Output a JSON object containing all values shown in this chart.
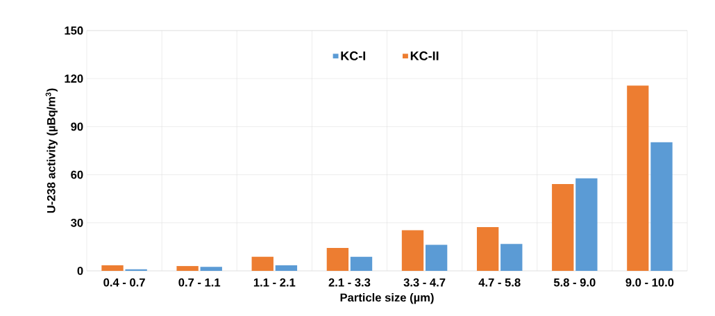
{
  "chart_data": {
    "type": "bar",
    "xlabel": "Particle size (µm)",
    "ylabel": "U-238 activity (µBq/m$^{3}$)",
    "categories": [
      "0.4 - 0.7",
      "0.7 - 1.1",
      "1.1 - 2.1",
      "2.1 - 3.3",
      "3.3 - 4.7",
      "4.7 - 5.8",
      "5.8 - 9.0",
      "9.0 - 10.0"
    ],
    "series": [
      {
        "name": "KC-II",
        "color": "#ed7d31",
        "values": [
          3.5,
          3.0,
          8.8,
          14.3,
          25.4,
          27.3,
          54.2,
          115.6
        ]
      },
      {
        "name": "KC-I",
        "color": "#5b9bd5",
        "values": [
          1.0,
          2.5,
          3.5,
          8.8,
          16.3,
          16.8,
          57.8,
          80.3
        ]
      }
    ],
    "ylim": [
      0,
      150
    ],
    "yticks": [
      0,
      30,
      60,
      90,
      120,
      150
    ],
    "grid": true,
    "legend": "top"
  }
}
